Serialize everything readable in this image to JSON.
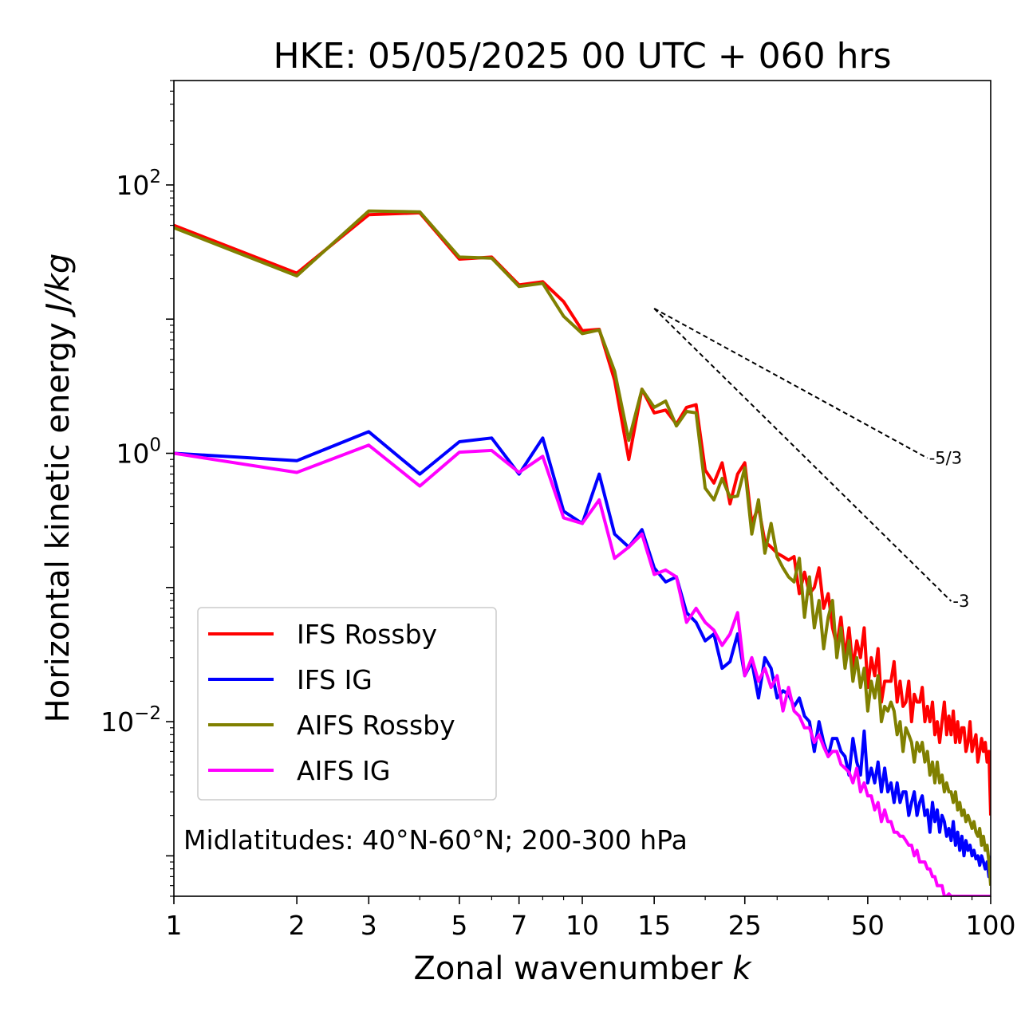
{
  "chart_data": {
    "type": "line",
    "title": "HKE: 05/05/2025 00 UTC + 060 hrs",
    "xlabel": "Zonal wavenumber k",
    "xlabel_main": "Zonal wavenumber ",
    "xlabel_var": "k",
    "ylabel_main": "Horizontal kinetic energy ",
    "ylabel_unit": "J/kg",
    "xscale": "log",
    "yscale": "log",
    "xlim": [
      1,
      100
    ],
    "ylim": [
      0.0005,
      600
    ],
    "x_ticks": [
      1,
      2,
      3,
      5,
      7,
      10,
      15,
      25,
      50,
      100
    ],
    "x_tick_labels": [
      "1",
      "2",
      "3",
      "5",
      "7",
      "10",
      "15",
      "25",
      "50",
      "100"
    ],
    "y_ticks": [
      {
        "value": 100,
        "base": "10",
        "exp": "2"
      },
      {
        "value": 1,
        "base": "10",
        "exp": "0"
      },
      {
        "value": 0.01,
        "base": "10",
        "exp": "−2"
      }
    ],
    "grid": false,
    "legend_position": "lower-left",
    "annotation": "Midlatitudes: 40°N-60°N; 200-300 hPa",
    "reference_slopes": [
      {
        "label": "-5/3",
        "slope": -1.6667,
        "x_start": 15,
        "y_start": 12,
        "x_end": 70
      },
      {
        "label": "-3",
        "slope": -3,
        "x_start": 15,
        "y_start": 12,
        "x_end": 80
      }
    ],
    "series": [
      {
        "name": "IFS Rossby",
        "color": "#ff0000",
        "values": [
          50,
          22,
          60,
          62,
          28,
          29,
          18,
          19,
          13.5,
          8.2,
          8.4,
          3.5,
          0.9,
          3.0,
          2.0,
          2.1,
          1.65,
          2.2,
          2.3,
          0.75,
          0.6,
          0.85,
          0.42,
          0.7,
          0.85,
          0.3,
          0.4,
          0.22,
          0.2,
          0.18,
          0.17,
          0.16,
          0.17,
          0.09,
          0.13,
          0.09,
          0.1,
          0.14,
          0.07,
          0.09,
          0.05,
          0.037,
          0.06,
          0.03,
          0.05,
          0.025,
          0.04,
          0.03,
          0.05,
          0.018,
          0.03,
          0.022,
          0.035,
          0.014,
          0.02,
          0.02,
          0.02,
          0.028,
          0.014,
          0.02,
          0.013,
          0.014,
          0.02,
          0.01,
          0.016,
          0.014,
          0.014,
          0.018,
          0.01,
          0.013,
          0.01,
          0.014,
          0.008,
          0.01,
          0.007,
          0.01,
          0.014,
          0.008,
          0.011,
          0.008,
          0.012,
          0.007,
          0.01,
          0.007,
          0.009,
          0.009,
          0.006,
          0.007,
          0.01,
          0.006,
          0.007,
          0.008,
          0.005,
          0.006,
          0.0075,
          0.006,
          0.007,
          0.005,
          0.006,
          0.002
        ]
      },
      {
        "name": "IFS IG",
        "color": "#0000ff",
        "values": [
          1.0,
          0.88,
          1.45,
          0.7,
          1.22,
          1.3,
          0.7,
          1.3,
          0.37,
          0.3,
          0.7,
          0.25,
          0.2,
          0.27,
          0.14,
          0.11,
          0.12,
          0.065,
          0.055,
          0.04,
          0.045,
          0.025,
          0.028,
          0.045,
          0.022,
          0.028,
          0.015,
          0.03,
          0.025,
          0.015,
          0.017,
          0.016,
          0.013,
          0.015,
          0.011,
          0.01,
          0.006,
          0.01,
          0.007,
          0.0055,
          0.0075,
          0.0075,
          0.006,
          0.0055,
          0.004,
          0.0075,
          0.005,
          0.004,
          0.0085,
          0.0035,
          0.0045,
          0.0035,
          0.005,
          0.003,
          0.0045,
          0.003,
          0.0035,
          0.0025,
          0.0035,
          0.0025,
          0.003,
          0.003,
          0.002,
          0.0025,
          0.003,
          0.002,
          0.0025,
          0.0028,
          0.002,
          0.0022,
          0.0015,
          0.0025,
          0.0018,
          0.0022,
          0.0015,
          0.002,
          0.0018,
          0.0014,
          0.0016,
          0.0013,
          0.0018,
          0.0012,
          0.0015,
          0.0011,
          0.0014,
          0.001,
          0.0013,
          0.0011,
          0.0012,
          0.001,
          0.0011,
          0.00095,
          0.001,
          0.00085,
          0.001,
          0.0009,
          0.0008,
          0.0009,
          0.0007,
          0.001
        ]
      },
      {
        "name": "AIFS Rossby",
        "color": "#808000",
        "values": [
          48,
          21,
          64,
          63,
          29,
          28.5,
          17.5,
          18.5,
          10.5,
          7.8,
          8.3,
          4.1,
          1.25,
          3.0,
          2.2,
          2.45,
          1.6,
          2.05,
          2.0,
          0.55,
          0.45,
          0.65,
          0.47,
          0.48,
          0.78,
          0.25,
          0.45,
          0.18,
          0.3,
          0.17,
          0.14,
          0.12,
          0.11,
          0.165,
          0.06,
          0.12,
          0.05,
          0.08,
          0.035,
          0.06,
          0.08,
          0.03,
          0.05,
          0.025,
          0.04,
          0.02,
          0.03,
          0.018,
          0.025,
          0.012,
          0.02,
          0.015,
          0.022,
          0.01,
          0.013,
          0.012,
          0.014,
          0.012,
          0.008,
          0.01,
          0.006,
          0.009,
          0.008,
          0.007,
          0.005,
          0.007,
          0.006,
          0.007,
          0.005,
          0.006,
          0.004,
          0.005,
          0.0035,
          0.005,
          0.0035,
          0.004,
          0.003,
          0.0035,
          0.003,
          0.003,
          0.0025,
          0.003,
          0.0022,
          0.0025,
          0.002,
          0.0022,
          0.0018,
          0.002,
          0.0018,
          0.0016,
          0.0018,
          0.0015,
          0.0014,
          0.0016,
          0.0012,
          0.0014,
          0.0011,
          0.0012,
          0.0009,
          0.0006
        ]
      },
      {
        "name": "AIFS IG",
        "color": "#ff00ff",
        "values": [
          1.0,
          0.72,
          1.15,
          0.57,
          1.02,
          1.05,
          0.72,
          0.95,
          0.33,
          0.3,
          0.45,
          0.165,
          0.2,
          0.25,
          0.125,
          0.135,
          0.12,
          0.055,
          0.07,
          0.055,
          0.048,
          0.037,
          0.045,
          0.065,
          0.022,
          0.03,
          0.02,
          0.025,
          0.018,
          0.022,
          0.012,
          0.018,
          0.012,
          0.011,
          0.009,
          0.009,
          0.007,
          0.008,
          0.0065,
          0.0055,
          0.006,
          0.006,
          0.0048,
          0.0045,
          0.0042,
          0.0035,
          0.0045,
          0.003,
          0.0035,
          0.0028,
          0.0028,
          0.0022,
          0.0025,
          0.0018,
          0.0022,
          0.0018,
          0.0018,
          0.0015,
          0.0015,
          0.0014,
          0.0014,
          0.0013,
          0.0012,
          0.0012,
          0.001,
          0.0011,
          0.0009,
          0.0009,
          0.0009,
          0.0008,
          0.0008,
          0.0007,
          0.0007,
          0.0006,
          0.0006,
          0.0006,
          0.0005,
          0.0005,
          0.00052,
          0.0005,
          0.0005,
          0.0005,
          0.0005,
          0.0005,
          0.0005,
          0.0005,
          0.0005,
          0.0005,
          0.0005,
          0.0005,
          0.0005,
          0.0005,
          0.0005,
          0.0005,
          0.0005,
          0.0005,
          0.0005,
          0.0005,
          0.0005,
          0.0005
        ]
      }
    ]
  }
}
